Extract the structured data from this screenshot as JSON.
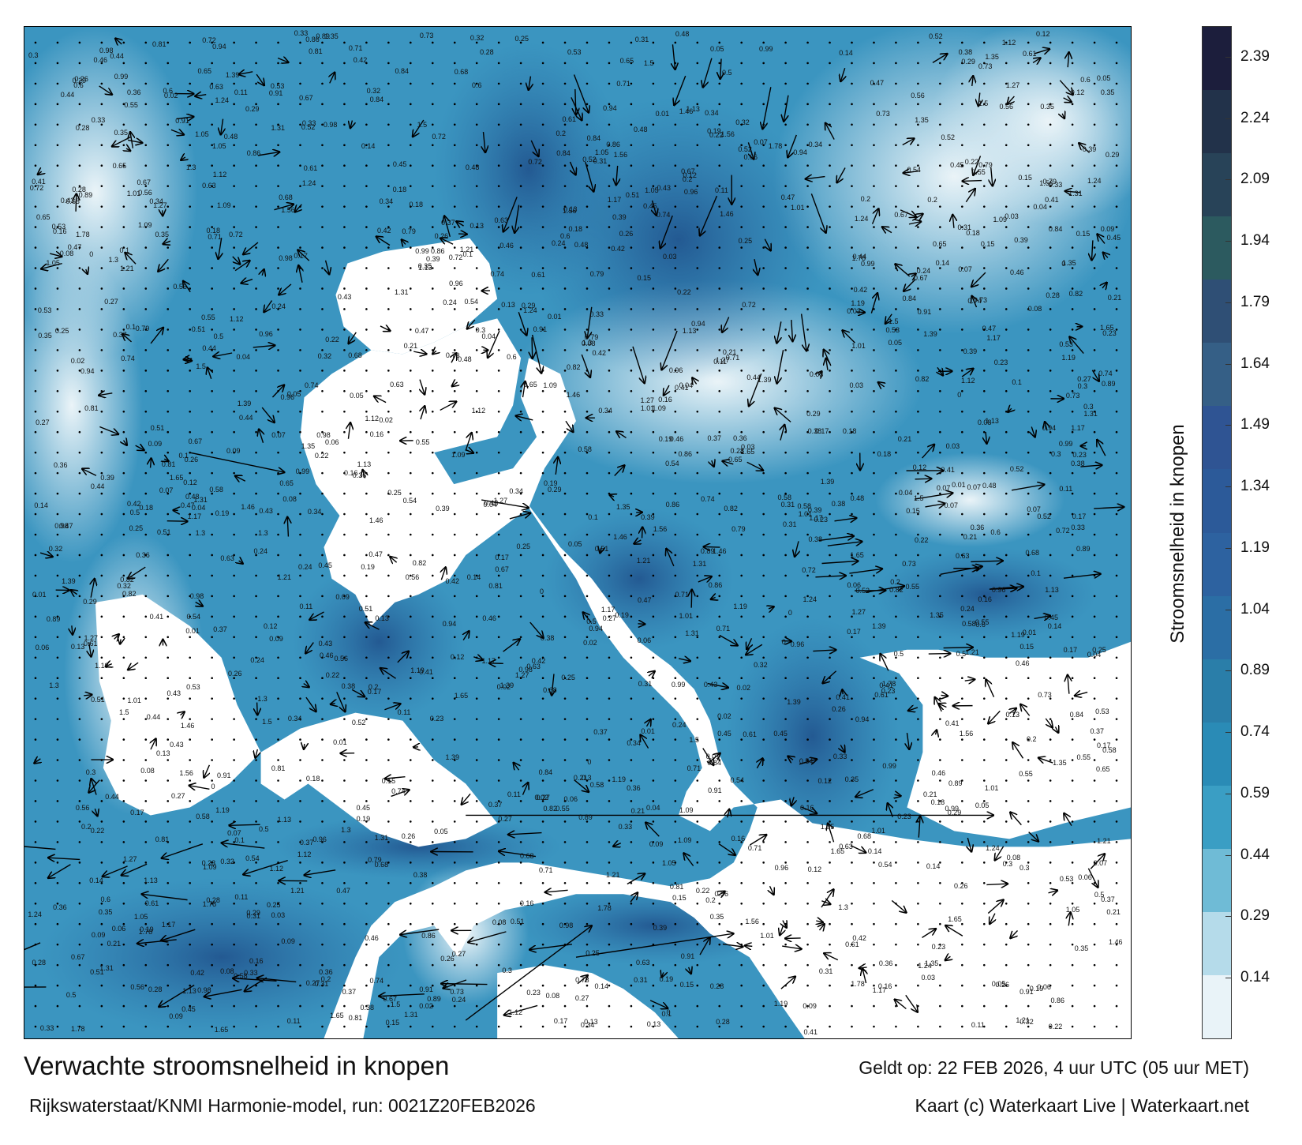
{
  "title": "Verwachte stroomsnelheid in knopen",
  "model_run": "Rijkswaterstaat/KNMI Harmonie-model, run: 0021Z20FEB2026",
  "valid_time": "Geldt op: 22 FEB 2026, 4 uur UTC (05 uur MET)",
  "credit": "Kaart (c) Waterkaart Live | Waterkaart.net",
  "colorbar": {
    "label": "Stroomsnelheid in knopen",
    "ticks": [
      "0.14",
      "0.29",
      "0.44",
      "0.59",
      "0.74",
      "0.89",
      "1.04",
      "1.19",
      "1.34",
      "1.49",
      "1.64",
      "1.79",
      "1.94",
      "2.09",
      "2.24",
      "2.39"
    ],
    "colors": [
      "#e9f3f8",
      "#b5dbea",
      "#6fbbd6",
      "#3a9ec4",
      "#2a8bb6",
      "#2a7ea9",
      "#2b6ea5",
      "#2d62a0",
      "#2c5a99",
      "#2f5493",
      "#355f86",
      "#2f4f75",
      "#2c5a5f",
      "#284358",
      "#22324a",
      "#1c1e3c"
    ]
  },
  "speed_labels": [
    "0.3",
    "0.21",
    "0.26",
    "0.25",
    "0.24",
    "0.23",
    "0.22",
    "0.16",
    "0.11",
    "0.17",
    "0.15",
    "0.14",
    "0.2",
    "0.08",
    "0.09",
    "0.07",
    "0.37",
    "0.36",
    "0.35",
    "0.34",
    "0.29",
    "0.19",
    "0.18",
    "0.27",
    "0.45",
    "0.47",
    "0.42",
    "0.39",
    "0.28",
    "0.33",
    "0.31",
    "0.41",
    "1.01",
    "1.31",
    "1.39",
    "1.5",
    "1.27",
    "1.12",
    "0.98",
    "0.96",
    "0.99",
    "1.05",
    "1.19",
    "1.24",
    "0.86",
    "0.74",
    "0.63",
    "0.58",
    "0.05",
    "0.06",
    "0.04",
    "0.02",
    "0.12",
    "0.13",
    "0.1",
    "0.01",
    "0.03",
    "0",
    "0.56",
    "0.61",
    "0.65",
    "0.71",
    "0.72",
    "0.89",
    "0.52",
    "0.55",
    "0.48",
    "0.44",
    "0.38",
    "0.43",
    "0.46",
    "0.51",
    "0.54",
    "0.67",
    "0.73",
    "0.79",
    "0.82",
    "1.13",
    "1.35",
    "1.46",
    "1.17",
    "1.56",
    "0.84",
    "0.91",
    "0.5",
    "0.53",
    "0.6",
    "0.68",
    "0.81",
    "0.94",
    "1.09",
    "1.21",
    "1.3",
    "1.65",
    "1.78",
    "0.32"
  ]
}
